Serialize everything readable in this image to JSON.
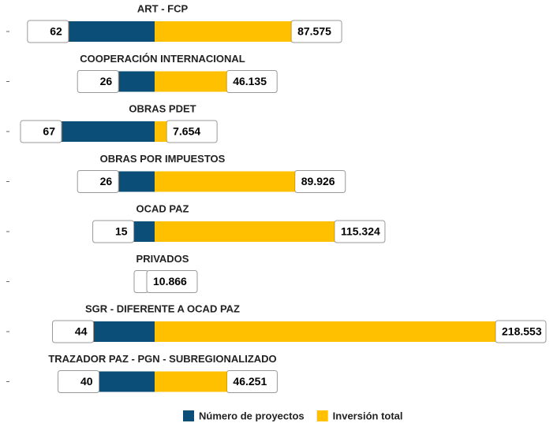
{
  "chart_data": {
    "type": "diverging-bar",
    "categories": [
      "ART - FCP",
      "COOPERACIÓN INTERNACIONAL",
      "OBRAS PDET",
      "OBRAS POR IMPUESTOS",
      "OCAD PAZ",
      "PRIVADOS",
      "SGR - DIFERENTE A OCAD PAZ",
      "TRAZADOR PAZ - PGN - SUBREGIONALIZADO"
    ],
    "series": [
      {
        "name": "Número de proyectos",
        "color": "#0b4f79",
        "values": [
          62,
          26,
          67,
          26,
          15,
          null,
          44,
          40
        ]
      },
      {
        "name": "Inversión total",
        "color": "#ffc000",
        "values": [
          87575,
          46135,
          7654,
          89926,
          115324,
          10866,
          218553,
          46251
        ],
        "value_labels": [
          "87.575",
          "46.135",
          "7.654",
          "89.926",
          "115.324",
          "10.866",
          "218.553",
          "46.251"
        ]
      }
    ],
    "legend": "bottom"
  }
}
